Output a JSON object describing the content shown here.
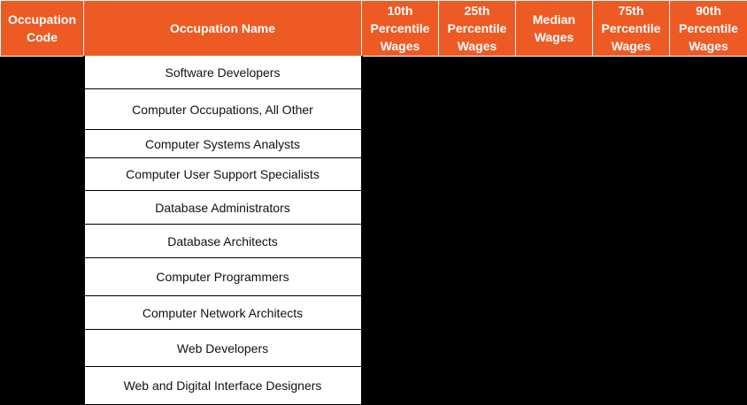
{
  "header": {
    "code": "Occupation Code",
    "name": "Occupation Name",
    "p10": "10th Percentile Wages",
    "p25": "25th Percentile Wages",
    "median": "Median Wages",
    "p75": "75th Percentile Wages",
    "p90": "90th Percentile Wages"
  },
  "rows": [
    {
      "name": "Software Developers"
    },
    {
      "name": "Computer Occupations, All Other"
    },
    {
      "name": "Computer Systems Analysts"
    },
    {
      "name": "Computer User Support Specialists"
    },
    {
      "name": "Database Administrators"
    },
    {
      "name": "Database Architects"
    },
    {
      "name": "Computer Programmers"
    },
    {
      "name": "Computer Network Architects"
    },
    {
      "name": "Web Developers"
    },
    {
      "name": "Web and Digital Interface Designers"
    }
  ],
  "colors": {
    "header_bg": "#EE5A24",
    "header_text": "#FFFFFF",
    "body_bg": "#000000"
  }
}
